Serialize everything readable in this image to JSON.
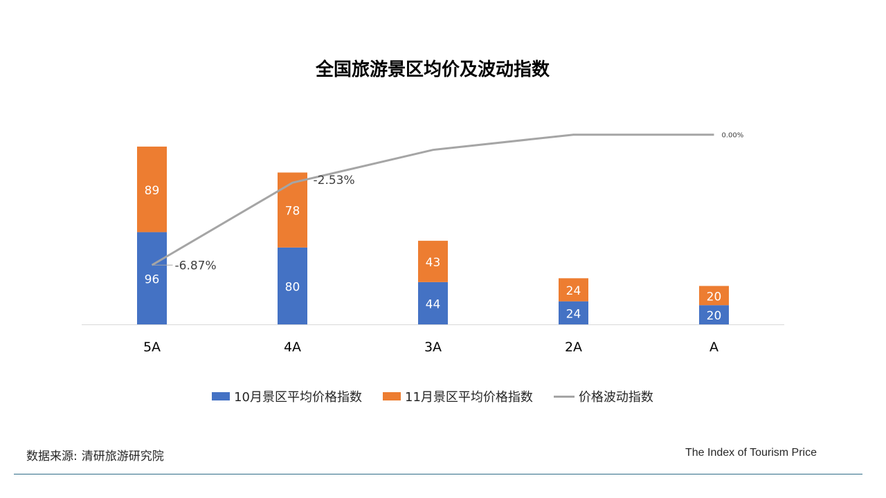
{
  "chart_data": {
    "type": "bar",
    "stacked": true,
    "title": "全国旅游景区均价及波动指数",
    "categories": [
      "5A",
      "4A",
      "3A",
      "2A",
      "A"
    ],
    "series": [
      {
        "name": "10月景区平均价格指数",
        "values": [
          96,
          80,
          44,
          24,
          20
        ],
        "color": "#4472c4"
      },
      {
        "name": "11月景区平均价格指数",
        "values": [
          89,
          78,
          43,
          24,
          20
        ],
        "color": "#ed7d31"
      },
      {
        "name": "价格波动指数",
        "type": "line",
        "values": [
          -6.87,
          -2.53,
          -0.8,
          0.0,
          0.0
        ],
        "color": "#a5a5a5",
        "labels": [
          "-6.87%",
          "-2.53%",
          "",
          "",
          "0.00%"
        ]
      }
    ],
    "ylim": [
      0,
      200
    ],
    "line_ylim": [
      -8.5,
      0.5
    ]
  },
  "legend": {
    "series1": "10月景区平均价格指数",
    "series2": "11月景区平均价格指数",
    "series3": "价格波动指数"
  },
  "footer": {
    "source_label": "数据来源:",
    "source_value": "清研旅游研究院",
    "brand": "The Index of Tourism Price"
  }
}
